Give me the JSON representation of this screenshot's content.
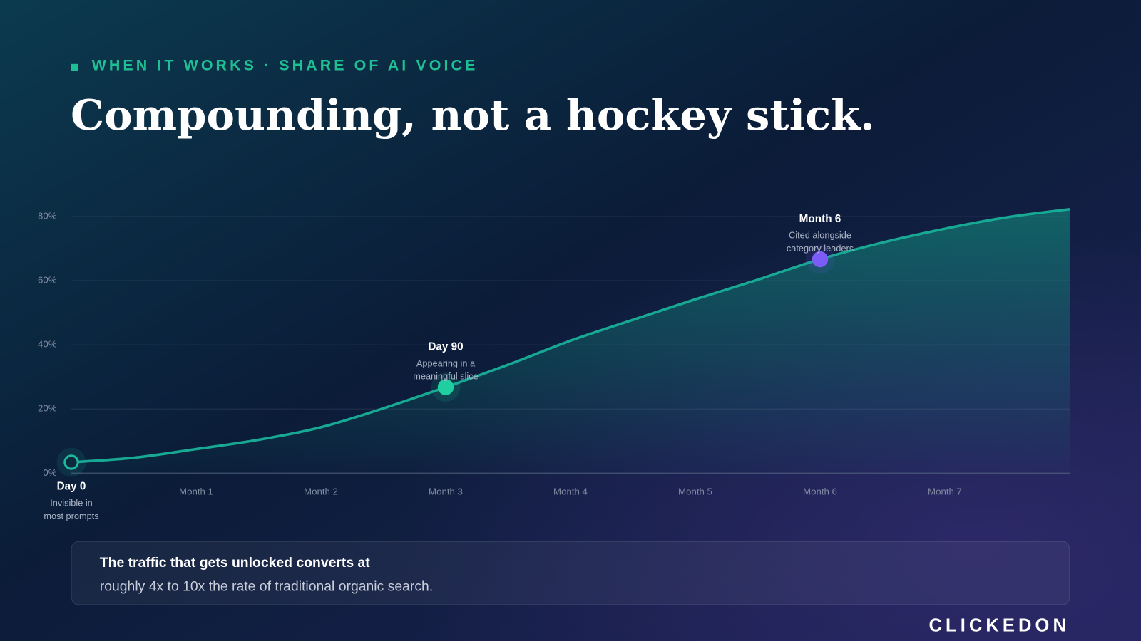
{
  "header": {
    "eyebrow": "WHEN IT WORKS · SHARE OF AI VOICE",
    "title": "Compounding, not a hockey stick."
  },
  "chart_data": {
    "type": "line",
    "x": [
      0,
      0.5,
      1,
      1.5,
      2,
      2.5,
      3,
      3.5,
      4,
      4.5,
      5,
      5.5,
      6,
      6.5,
      7,
      7.5,
      8
    ],
    "series": [
      {
        "color": "#17a994",
        "values": [
          3.4,
          4.8,
          7.5,
          10.4,
          14.3,
          20.2,
          26.8,
          33.8,
          41.3,
          47.8,
          54.2,
          60.3,
          66.7,
          71.9,
          76.2,
          79.8,
          82.3
        ]
      }
    ],
    "xlim": [
      0,
      8
    ],
    "xticks": [
      {
        "value": 1,
        "label": "Month 1"
      },
      {
        "value": 2,
        "label": "Month 2"
      },
      {
        "value": 3,
        "label": "Month 3"
      },
      {
        "value": 4,
        "label": "Month 4"
      },
      {
        "value": 5,
        "label": "Month 5"
      },
      {
        "value": 6,
        "label": "Month 6"
      },
      {
        "value": 7,
        "label": "Month 7"
      }
    ],
    "ylim": [
      0,
      80
    ],
    "yticks": [
      {
        "value": 0,
        "label": "0%"
      },
      {
        "value": 20,
        "label": "20%"
      },
      {
        "value": 40,
        "label": "40%"
      },
      {
        "value": 60,
        "label": "60%"
      },
      {
        "value": 80,
        "label": "80%"
      }
    ],
    "grid": true,
    "milestones": [
      {
        "x": 0,
        "y": 3.4,
        "label": "Day 0",
        "note": [
          "Invisible in",
          "most prompts"
        ],
        "color": "#1fb89a"
      },
      {
        "x": 3,
        "y": 26.8,
        "label": "Day 90",
        "note": [
          "Appearing in a",
          "meaningful slice"
        ],
        "color": "#1fcf9f"
      },
      {
        "x": 6,
        "y": 66.7,
        "label": "Month 6",
        "note": [
          "Cited alongside",
          "category leaders"
        ],
        "color": "#7b5cf6"
      }
    ]
  },
  "callout": {
    "headline": "The traffic that gets unlocked converts at",
    "body": "roughly 4x to 10x the rate of traditional organic search."
  },
  "logo": "CLICKEDON"
}
